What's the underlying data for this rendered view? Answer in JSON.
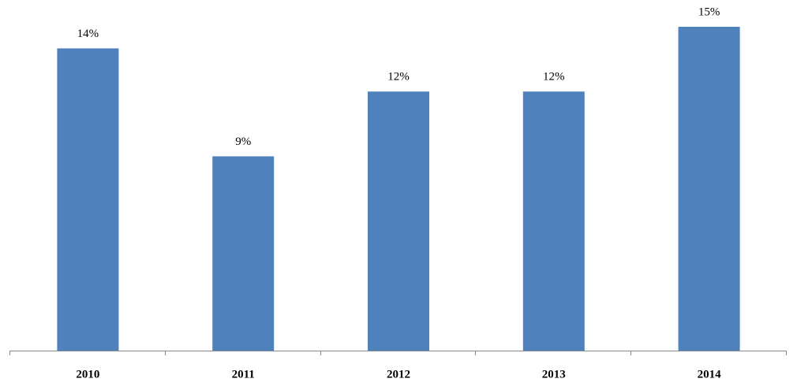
{
  "chart_data": {
    "type": "bar",
    "categories": [
      "2010",
      "2011",
      "2012",
      "2013",
      "2014"
    ],
    "values": [
      14,
      9,
      12,
      12,
      15
    ],
    "value_labels": [
      "14%",
      "9%",
      "12%",
      "12%",
      "15%"
    ],
    "color": "#4f81bd",
    "ylim": [
      0,
      15
    ]
  }
}
